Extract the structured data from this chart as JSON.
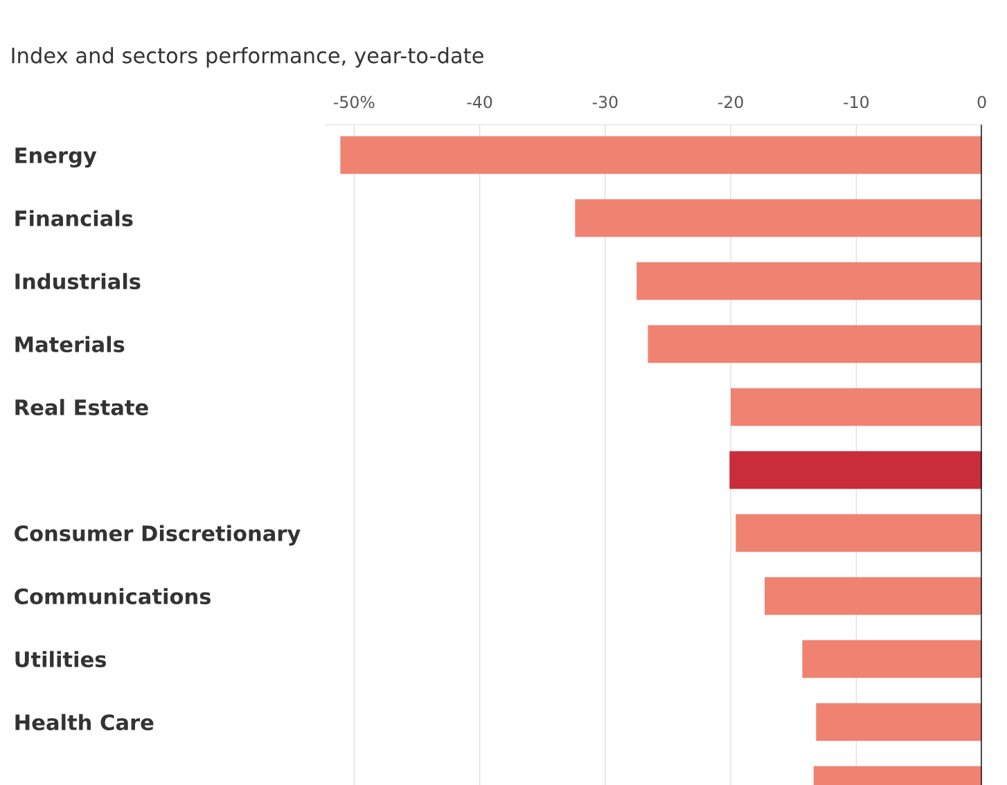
{
  "chart_data": {
    "type": "bar",
    "orientation": "horizontal",
    "title": "Index and sectors performance, year-to-date",
    "categories": [
      "Energy",
      "Financials",
      "Industrials",
      "Materials",
      "Real Estate",
      null,
      "Consumer Discretionary",
      "Communications",
      "Utilities",
      "Health Care",
      null
    ],
    "values": [
      -51.1,
      -32.4,
      -27.5,
      -26.6,
      -20.0,
      -20.1,
      -19.6,
      -17.3,
      -14.3,
      -13.2,
      -13.4
    ],
    "colors": [
      "#f08272",
      "#f08272",
      "#f08272",
      "#f08272",
      "#f08272",
      "#c92d39",
      "#f08272",
      "#f08272",
      "#f08272",
      "#f08272",
      "#f08272"
    ],
    "xlim": [
      -52.3,
      0
    ],
    "xticks": [
      {
        "value": -50,
        "label": "-50%"
      },
      -40,
      -30,
      -20,
      -10,
      0
    ],
    "grid": "x",
    "ref_lines": [
      {
        "axis": "x",
        "value": 0,
        "color": "#000000"
      }
    ]
  }
}
